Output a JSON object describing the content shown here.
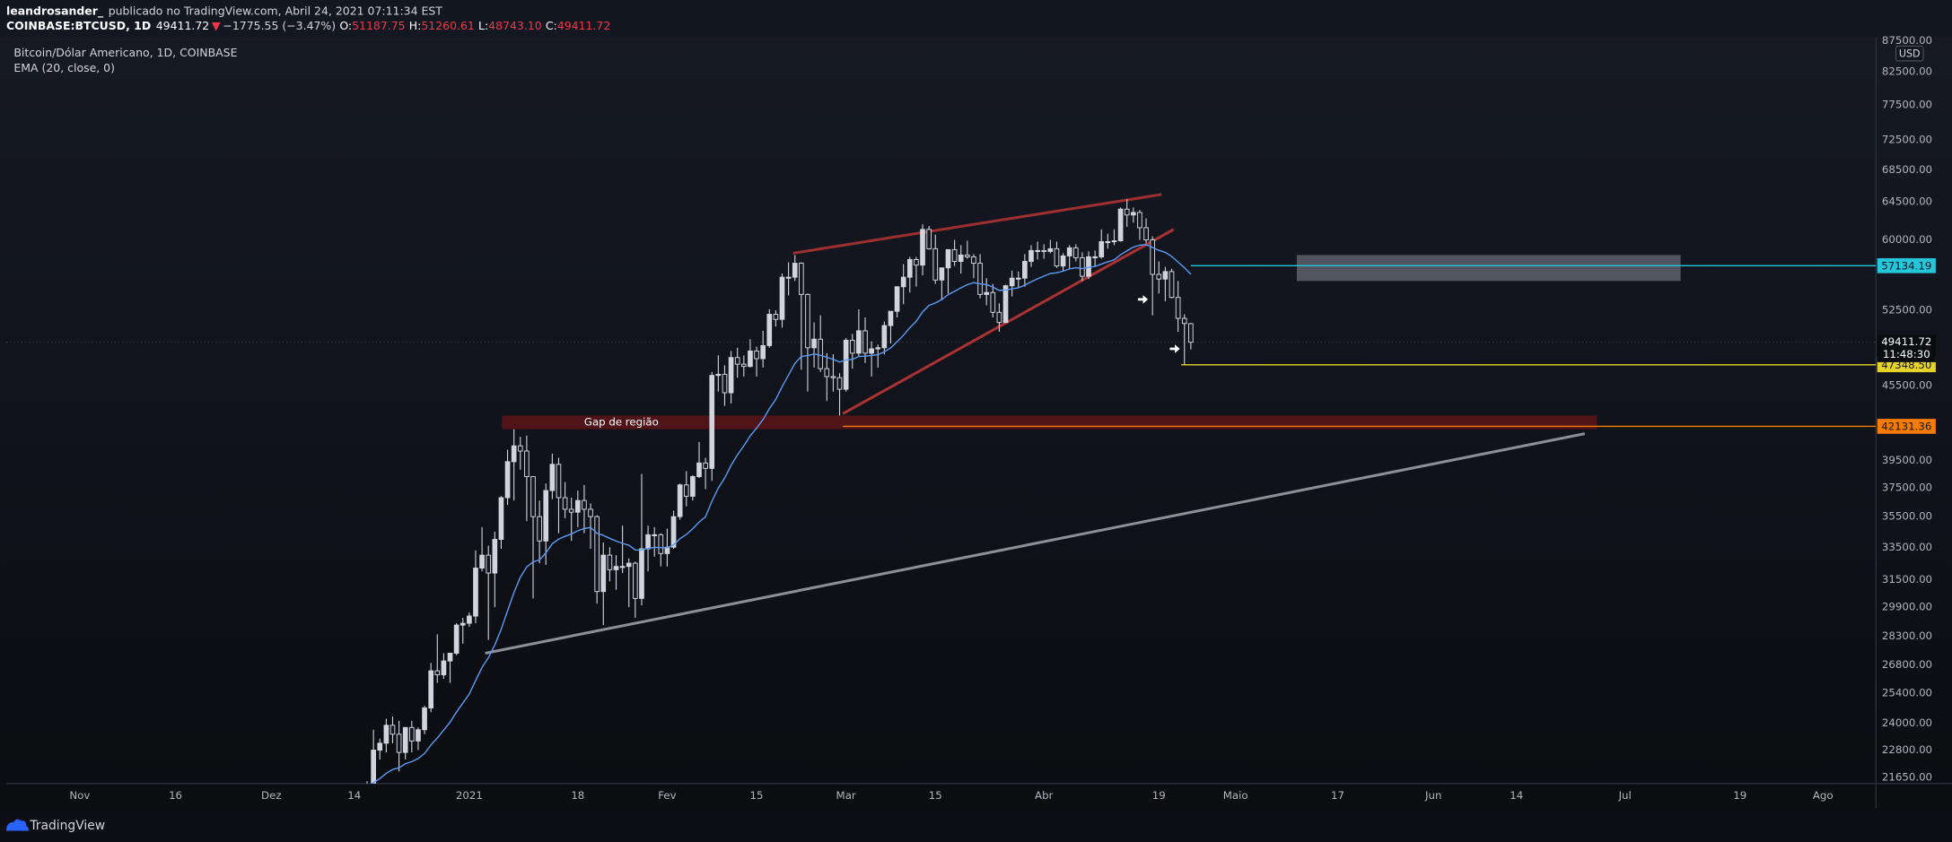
{
  "header": {
    "author": "leandrosander_",
    "published": "publicado no TradingView.com, Abril 24, 2021 07:11:34 EST",
    "symbol": "COINBASE:BTCUSD, 1D",
    "last": "49411.72",
    "change_arrow": "▼",
    "change": "−1775.55 (−3.47%)",
    "ohlc": [
      {
        "label": "O:",
        "value": "51187.75"
      },
      {
        "label": "H:",
        "value": "51260.61"
      },
      {
        "label": "L:",
        "value": "48743.10"
      },
      {
        "label": "C:",
        "value": "49411.72"
      }
    ]
  },
  "footer": {
    "brand": "TradingView"
  },
  "chart_data": {
    "type": "candlestick",
    "title": "Bitcoin/Dólar Americano, 1D, COINBASE",
    "currency": "USD",
    "countdown": "11:48:30",
    "indicator": {
      "label": "EMA (20, close, 0)",
      "period": 20,
      "color": "#5b9cf6"
    },
    "up_color": "#d1d4dc",
    "down_color": "#131722",
    "log_scale": true,
    "xlim": [
      -11.5,
      281.3
    ],
    "ylim": [
      21400,
      88100
    ],
    "xticks": [
      {
        "value": 0,
        "label": "Nov"
      },
      {
        "value": 15,
        "label": "16"
      },
      {
        "value": 30,
        "label": "Dez"
      },
      {
        "value": 43,
        "label": "14"
      },
      {
        "value": 61,
        "label": "2021"
      },
      {
        "value": 78,
        "label": "18"
      },
      {
        "value": 92,
        "label": "Fev"
      },
      {
        "value": 106,
        "label": "15"
      },
      {
        "value": 120,
        "label": "Mar"
      },
      {
        "value": 134,
        "label": "15"
      },
      {
        "value": 151,
        "label": "Abr"
      },
      {
        "value": 169,
        "label": "19"
      },
      {
        "value": 181,
        "label": "Maio"
      },
      {
        "value": 197,
        "label": "17"
      },
      {
        "value": 212,
        "label": "Jun"
      },
      {
        "value": 225,
        "label": "14"
      },
      {
        "value": 242,
        "label": "Jul"
      },
      {
        "value": 260,
        "label": "19"
      },
      {
        "value": 273,
        "label": "Ago"
      }
    ],
    "yticks": [
      {
        "value": 87500,
        "label": "87500.00"
      },
      {
        "value": 82500,
        "label": "82500.00"
      },
      {
        "value": 77500,
        "label": "77500.00"
      },
      {
        "value": 72500,
        "label": "72500.00"
      },
      {
        "value": 68500,
        "label": "68500.00"
      },
      {
        "value": 64500,
        "label": "64500.00"
      },
      {
        "value": 60000,
        "label": "60000.00"
      },
      {
        "value": 52500,
        "label": "52500.00"
      },
      {
        "value": 45500,
        "label": "45500.00"
      },
      {
        "value": 39500,
        "label": "39500.00"
      },
      {
        "value": 37500,
        "label": "37500.00"
      },
      {
        "value": 35500,
        "label": "35500.00"
      },
      {
        "value": 33500,
        "label": "33500.00"
      },
      {
        "value": 31500,
        "label": "31500.00"
      },
      {
        "value": 29900,
        "label": "29900.00"
      },
      {
        "value": 28300,
        "label": "28300.00"
      },
      {
        "value": 26800,
        "label": "26800.00"
      },
      {
        "value": 25400,
        "label": "25400.00"
      },
      {
        "value": 24000,
        "label": "24000.00"
      },
      {
        "value": 22800,
        "label": "22800.00"
      },
      {
        "value": 21650,
        "label": "21650.00"
      }
    ],
    "candles": [
      [
        45,
        19400,
        21500,
        19300,
        21300
      ],
      [
        46,
        21300,
        23700,
        21200,
        22800
      ],
      [
        47,
        22800,
        23300,
        22400,
        23100
      ],
      [
        48,
        23100,
        24200,
        22700,
        23900
      ],
      [
        49,
        23900,
        24300,
        23100,
        23500
      ],
      [
        50,
        23500,
        24100,
        21900,
        22700
      ],
      [
        51,
        22700,
        23800,
        22400,
        23800
      ],
      [
        52,
        23800,
        24100,
        22700,
        23200
      ],
      [
        53,
        23200,
        23800,
        22800,
        23700
      ],
      [
        54,
        23700,
        24800,
        23500,
        24700
      ],
      [
        55,
        24700,
        26900,
        24500,
        26500
      ],
      [
        56,
        26500,
        28400,
        25900,
        26300
      ],
      [
        57,
        26300,
        27400,
        26100,
        27000
      ],
      [
        58,
        27000,
        27400,
        25900,
        27400
      ],
      [
        59,
        27400,
        28999,
        27300,
        28900
      ],
      [
        60,
        28900,
        29300,
        27900,
        29000
      ],
      [
        61,
        29000,
        29600,
        28800,
        29400
      ],
      [
        62,
        29400,
        33300,
        29000,
        32200
      ],
      [
        63,
        32200,
        34800,
        32000,
        33000
      ],
      [
        64,
        33000,
        33600,
        28100,
        31900
      ],
      [
        65,
        31900,
        34500,
        29900,
        34000
      ],
      [
        66,
        34000,
        36900,
        33400,
        36800
      ],
      [
        67,
        36800,
        40300,
        36300,
        39400
      ],
      [
        68,
        39400,
        41900,
        36600,
        40600
      ],
      [
        69,
        40600,
        41300,
        38800,
        40200
      ],
      [
        70,
        40200,
        41400,
        35200,
        38300
      ],
      [
        71,
        38300,
        38300,
        30400,
        35500
      ],
      [
        72,
        35500,
        36600,
        32500,
        33900
      ],
      [
        73,
        33900,
        37800,
        32400,
        37300
      ],
      [
        74,
        37300,
        40000,
        36700,
        39200
      ],
      [
        75,
        39200,
        39700,
        34400,
        36800
      ],
      [
        76,
        36800,
        37900,
        35400,
        36000
      ],
      [
        77,
        36000,
        36800,
        33900,
        35800
      ],
      [
        78,
        35800,
        37300,
        34800,
        36600
      ],
      [
        79,
        36600,
        37700,
        34400,
        36000
      ],
      [
        80,
        36000,
        36400,
        33400,
        35500
      ],
      [
        81,
        35500,
        35600,
        30100,
        30800
      ],
      [
        82,
        30800,
        33800,
        28900,
        33000
      ],
      [
        83,
        33000,
        33500,
        31400,
        32100
      ],
      [
        84,
        32100,
        33000,
        30900,
        32300
      ],
      [
        85,
        32300,
        34900,
        31900,
        32300
      ],
      [
        86,
        32300,
        32800,
        29900,
        32500
      ],
      [
        87,
        32500,
        32600,
        29300,
        30400
      ],
      [
        88,
        30400,
        38500,
        30000,
        33400
      ],
      [
        89,
        33400,
        34900,
        32000,
        34300
      ],
      [
        90,
        34300,
        34800,
        32900,
        34300
      ],
      [
        91,
        34300,
        34400,
        32300,
        33100
      ],
      [
        92,
        33100,
        34700,
        32300,
        33500
      ],
      [
        93,
        33500,
        35900,
        33400,
        35500
      ],
      [
        94,
        35500,
        37800,
        35300,
        37700
      ],
      [
        95,
        37700,
        38700,
        36200,
        36900
      ],
      [
        96,
        36900,
        38400,
        36600,
        38300
      ],
      [
        97,
        38300,
        40900,
        38200,
        39300
      ],
      [
        98,
        39300,
        39700,
        37400,
        38900
      ],
      [
        99,
        38900,
        46700,
        38000,
        46400
      ],
      [
        100,
        46400,
        48200,
        45000,
        46500
      ],
      [
        101,
        46500,
        47300,
        43800,
        44900
      ],
      [
        102,
        44900,
        48600,
        44000,
        48000
      ],
      [
        103,
        48000,
        48900,
        46200,
        47400
      ],
      [
        104,
        47400,
        48200,
        46300,
        47200
      ],
      [
        105,
        47200,
        49700,
        47100,
        48600
      ],
      [
        106,
        48600,
        49000,
        46300,
        47900
      ],
      [
        107,
        47900,
        50500,
        47100,
        49100
      ],
      [
        108,
        49100,
        52600,
        48900,
        52100
      ],
      [
        109,
        52100,
        52500,
        50900,
        51600
      ],
      [
        110,
        51600,
        56300,
        50800,
        55900
      ],
      [
        111,
        55900,
        57500,
        54000,
        55900
      ],
      [
        112,
        55900,
        58300,
        55500,
        57400
      ],
      [
        113,
        57400,
        57500,
        46900,
        54100
      ],
      [
        114,
        54100,
        54200,
        45000,
        48900
      ],
      [
        115,
        48900,
        51300,
        47100,
        49700
      ],
      [
        116,
        49700,
        52000,
        46700,
        47000
      ],
      [
        117,
        47000,
        48400,
        44200,
        46300
      ],
      [
        118,
        46300,
        48300,
        45000,
        46200
      ],
      [
        119,
        46200,
        46600,
        43000,
        45200
      ],
      [
        120,
        45200,
        49800,
        45000,
        49600
      ],
      [
        121,
        49600,
        50200,
        47000,
        48400
      ],
      [
        122,
        48400,
        52600,
        48100,
        50500
      ],
      [
        123,
        50500,
        51800,
        47500,
        48400
      ],
      [
        124,
        48400,
        49500,
        46300,
        48800
      ],
      [
        125,
        48800,
        49200,
        47100,
        48900
      ],
      [
        126,
        48900,
        51400,
        48300,
        51000
      ],
      [
        127,
        51000,
        52400,
        49300,
        52400
      ],
      [
        128,
        52400,
        54900,
        51800,
        54900
      ],
      [
        129,
        54900,
        57300,
        53100,
        55900
      ],
      [
        130,
        55900,
        58100,
        54300,
        57800
      ],
      [
        131,
        57800,
        58100,
        54900,
        57200
      ],
      [
        132,
        57200,
        61800,
        56100,
        61200
      ],
      [
        133,
        61200,
        61600,
        58900,
        59000
      ],
      [
        134,
        59000,
        60600,
        55200,
        55600
      ],
      [
        135,
        55600,
        56900,
        53500,
        56900
      ],
      [
        136,
        56900,
        58900,
        54200,
        58900
      ],
      [
        137,
        58900,
        60000,
        57100,
        57600
      ],
      [
        138,
        57600,
        59400,
        56300,
        58300
      ],
      [
        139,
        58300,
        59900,
        57900,
        58100
      ],
      [
        140,
        58100,
        58400,
        55800,
        57400
      ],
      [
        141,
        57400,
        58400,
        53700,
        54100
      ],
      [
        142,
        54100,
        55800,
        53000,
        54300
      ],
      [
        143,
        54300,
        55200,
        51800,
        52300
      ],
      [
        144,
        52300,
        53200,
        50400,
        51300
      ],
      [
        145,
        51300,
        55100,
        51300,
        55000
      ],
      [
        146,
        55000,
        56600,
        53900,
        55800
      ],
      [
        147,
        55800,
        56500,
        54800,
        55800
      ],
      [
        148,
        55800,
        58400,
        54900,
        57600
      ],
      [
        149,
        57600,
        59400,
        57000,
        58800
      ],
      [
        150,
        58800,
        59800,
        57800,
        58800
      ],
      [
        151,
        58800,
        59500,
        57900,
        58700
      ],
      [
        152,
        58700,
        60000,
        58500,
        59000
      ],
      [
        153,
        59000,
        59800,
        56900,
        57100
      ],
      [
        154,
        57100,
        58500,
        56500,
        58200
      ],
      [
        155,
        58200,
        59400,
        56800,
        59100
      ],
      [
        156,
        59100,
        59500,
        57600,
        58000
      ],
      [
        157,
        58000,
        58600,
        55500,
        56000
      ],
      [
        158,
        56000,
        58700,
        55700,
        58100
      ],
      [
        159,
        58100,
        58800,
        57000,
        58100
      ],
      [
        160,
        58100,
        61200,
        57900,
        59800
      ],
      [
        161,
        59800,
        60700,
        59000,
        59800
      ],
      [
        162,
        59800,
        61200,
        59400,
        59900
      ],
      [
        163,
        59900,
        63800,
        59800,
        63600
      ],
      [
        164,
        63600,
        64800,
        61500,
        62900
      ],
      [
        165,
        62900,
        63800,
        62000,
        63200
      ],
      [
        166,
        63200,
        63500,
        60000,
        61400
      ],
      [
        167,
        61400,
        62500,
        59600,
        60000
      ],
      [
        168,
        60000,
        60400,
        52000,
        56200
      ],
      [
        169,
        56200,
        57600,
        54200,
        55700
      ],
      [
        170,
        55700,
        57000,
        53400,
        56500
      ],
      [
        171,
        56500,
        56800,
        53700,
        53800
      ],
      [
        172,
        53800,
        55500,
        50400,
        51700
      ],
      [
        173,
        51700,
        52100,
        47400,
        51200
      ],
      [
        174,
        51187.75,
        51260.61,
        48743.1,
        49411.72
      ]
    ],
    "trend_lines": [
      {
        "color": "#9c2f2f",
        "points": [
          [
            111.7,
            58500
          ],
          [
            169.4,
            65400
          ]
        ]
      },
      {
        "color": "#a83232",
        "points": [
          [
            119.5,
            43150
          ],
          [
            171.3,
            61200
          ]
        ]
      },
      {
        "color": "#8d8f96",
        "points": [
          [
            63.5,
            27400
          ],
          [
            235.7,
            41550
          ]
        ]
      }
    ],
    "rectangles": [
      {
        "color": "#5d606b",
        "x": [
          190.6,
          250.7
        ],
        "y": [
          55500,
          58300
        ]
      },
      {
        "color": "#5a1419",
        "x": [
          66.1,
          237.6
        ],
        "y": [
          41900,
          43000
        ],
        "text": "Gap de região"
      }
    ],
    "hlines": [
      {
        "value": 57134.19,
        "label": "57134.19",
        "from": 174,
        "color": "#26c6da"
      },
      {
        "value": 47348.5,
        "label": "47348.50",
        "from": 172.5,
        "color": "#e6d32a"
      },
      {
        "value": 42131.36,
        "label": "42131.36",
        "from": 119.5,
        "color": "#f57c00"
      }
    ],
    "arrows": [
      [
        166.5,
        53600
      ],
      [
        171.5,
        48800
      ]
    ]
  }
}
